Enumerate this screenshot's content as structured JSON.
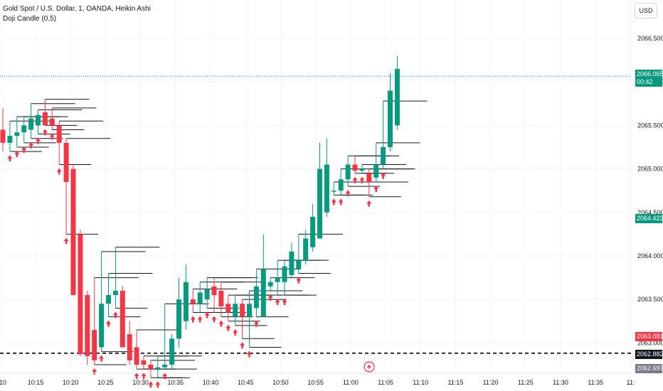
{
  "header": {
    "title": "Gold Spot / U.S. Dollar, 1, OANDA, Heikin Ashi",
    "indicator": "Doji Candle (0.5)"
  },
  "currency_button": "USD",
  "badges": {
    "last_price": "2066.065",
    "countdown": "00:42",
    "marker_green": "2064.423",
    "marker_red": "2063.081",
    "line_black": "2062.882",
    "line_gray": "2062.697"
  },
  "colors": {
    "up": "#089981",
    "down": "#f23645",
    "signal_arrow": "#f23645",
    "grid": "#f0f3fa",
    "price_line": "#089981"
  },
  "chart_data": {
    "type": "candlestick",
    "title": "Gold Spot / U.S. Dollar, 1, OANDA, Heikin Ashi",
    "ylim": [
      2062.6,
      2066.85
    ],
    "y_ticks": [
      "2066.500",
      "2066.000",
      "2065.500",
      "2065.000",
      "2064.500",
      "2064.000",
      "2063.500",
      "2063.000"
    ],
    "x_ticks": [
      "10",
      "10:15",
      "10:20",
      "10:25",
      "10:30",
      "10:35",
      "10:40",
      "10:45",
      "10:50",
      "10:55",
      "11:00",
      "11:05",
      "11:10",
      "11:15",
      "11:20",
      "11:25",
      "11:30",
      "11:35",
      "11:"
    ],
    "horizontal_lines": [
      {
        "price": 2066.065,
        "style": "dotted",
        "color": "#089981"
      },
      {
        "price": 2062.882,
        "style": "dashed",
        "color": "#000000"
      }
    ],
    "candles": [
      {
        "o": 2065.45,
        "h": 2065.7,
        "l": 2065.2,
        "c": 2065.3
      },
      {
        "o": 2065.3,
        "h": 2065.55,
        "l": 2065.2,
        "c": 2065.38
      },
      {
        "o": 2065.38,
        "h": 2065.6,
        "l": 2065.25,
        "c": 2065.42
      },
      {
        "o": 2065.42,
        "h": 2065.6,
        "l": 2065.3,
        "c": 2065.5
      },
      {
        "o": 2065.45,
        "h": 2065.75,
        "l": 2065.35,
        "c": 2065.58
      },
      {
        "o": 2065.5,
        "h": 2065.68,
        "l": 2065.4,
        "c": 2065.62
      },
      {
        "o": 2065.65,
        "h": 2065.8,
        "l": 2065.5,
        "c": 2065.5
      },
      {
        "o": 2065.58,
        "h": 2065.7,
        "l": 2065.45,
        "c": 2065.5
      },
      {
        "o": 2065.5,
        "h": 2065.55,
        "l": 2065.05,
        "c": 2065.3
      },
      {
        "o": 2065.3,
        "h": 2065.35,
        "l": 2064.25,
        "c": 2064.85
      },
      {
        "o": 2065.0,
        "h": 2065.05,
        "l": 2063.55,
        "c": 2063.55
      },
      {
        "o": 2064.25,
        "h": 2064.3,
        "l": 2062.85,
        "c": 2062.87
      },
      {
        "o": 2063.55,
        "h": 2063.6,
        "l": 2062.75,
        "c": 2062.85
      },
      {
        "o": 2063.15,
        "h": 2063.75,
        "l": 2062.75,
        "c": 2062.8
      },
      {
        "o": 2062.95,
        "h": 2064.05,
        "l": 2062.9,
        "c": 2063.45
      },
      {
        "o": 2063.45,
        "h": 2063.8,
        "l": 2063.3,
        "c": 2063.55
      },
      {
        "o": 2063.55,
        "h": 2064.1,
        "l": 2063.4,
        "c": 2063.6
      },
      {
        "o": 2063.6,
        "h": 2063.65,
        "l": 2062.95,
        "c": 2062.95
      },
      {
        "o": 2063.1,
        "h": 2063.25,
        "l": 2062.75,
        "c": 2062.8
      },
      {
        "o": 2062.95,
        "h": 2063.15,
        "l": 2062.7,
        "c": 2062.75
      },
      {
        "o": 2062.8,
        "h": 2062.85,
        "l": 2062.7,
        "c": 2062.75
      },
      {
        "o": 2062.75,
        "h": 2062.8,
        "l": 2062.6,
        "c": 2062.7
      },
      {
        "o": 2062.7,
        "h": 2062.85,
        "l": 2062.6,
        "c": 2062.72
      },
      {
        "o": 2062.72,
        "h": 2063.45,
        "l": 2062.7,
        "c": 2062.75
      },
      {
        "o": 2062.75,
        "h": 2063.1,
        "l": 2062.7,
        "c": 2063.05
      },
      {
        "o": 2063.05,
        "h": 2063.75,
        "l": 2062.95,
        "c": 2063.5
      },
      {
        "o": 2063.25,
        "h": 2063.9,
        "l": 2063.15,
        "c": 2063.7
      },
      {
        "o": 2063.5,
        "h": 2063.62,
        "l": 2063.35,
        "c": 2063.45
      },
      {
        "o": 2063.45,
        "h": 2063.7,
        "l": 2063.35,
        "c": 2063.58
      },
      {
        "o": 2063.5,
        "h": 2063.75,
        "l": 2063.4,
        "c": 2063.62
      },
      {
        "o": 2063.65,
        "h": 2063.75,
        "l": 2063.35,
        "c": 2063.55
      },
      {
        "o": 2063.6,
        "h": 2063.7,
        "l": 2063.3,
        "c": 2063.42
      },
      {
        "o": 2063.45,
        "h": 2063.55,
        "l": 2063.25,
        "c": 2063.35
      },
      {
        "o": 2063.3,
        "h": 2063.55,
        "l": 2063.2,
        "c": 2063.45
      },
      {
        "o": 2063.45,
        "h": 2063.5,
        "l": 2063.05,
        "c": 2063.3
      },
      {
        "o": 2063.3,
        "h": 2063.6,
        "l": 2062.95,
        "c": 2063.45
      },
      {
        "o": 2063.4,
        "h": 2063.85,
        "l": 2063.3,
        "c": 2063.65
      },
      {
        "o": 2063.3,
        "h": 2064.25,
        "l": 2063.3,
        "c": 2063.85
      },
      {
        "o": 2063.65,
        "h": 2063.75,
        "l": 2063.6,
        "c": 2063.7
      },
      {
        "o": 2063.7,
        "h": 2063.95,
        "l": 2063.55,
        "c": 2063.75
      },
      {
        "o": 2063.7,
        "h": 2063.95,
        "l": 2063.55,
        "c": 2063.88
      },
      {
        "o": 2063.78,
        "h": 2064.15,
        "l": 2063.75,
        "c": 2064.05
      },
      {
        "o": 2063.85,
        "h": 2064.25,
        "l": 2063.8,
        "c": 2063.95
      },
      {
        "o": 2063.95,
        "h": 2064.3,
        "l": 2063.9,
        "c": 2064.2
      },
      {
        "o": 2064.1,
        "h": 2064.6,
        "l": 2064.05,
        "c": 2064.45
      },
      {
        "o": 2064.2,
        "h": 2065.3,
        "l": 2064.2,
        "c": 2065.0
      },
      {
        "o": 2064.5,
        "h": 2065.35,
        "l": 2064.45,
        "c": 2065.05
      },
      {
        "o": 2064.75,
        "h": 2064.85,
        "l": 2064.7,
        "c": 2064.75
      },
      {
        "o": 2064.75,
        "h": 2065.0,
        "l": 2064.7,
        "c": 2064.88
      },
      {
        "o": 2064.88,
        "h": 2065.15,
        "l": 2064.8,
        "c": 2065.05
      },
      {
        "o": 2065.05,
        "h": 2065.15,
        "l": 2064.95,
        "c": 2064.98
      },
      {
        "o": 2064.98,
        "h": 2065.05,
        "l": 2064.95,
        "c": 2065.0
      },
      {
        "o": 2064.95,
        "h": 2065.0,
        "l": 2064.68,
        "c": 2064.85
      },
      {
        "o": 2064.9,
        "h": 2065.3,
        "l": 2064.85,
        "c": 2065.05
      },
      {
        "o": 2065.05,
        "h": 2065.78,
        "l": 2065.0,
        "c": 2065.25
      },
      {
        "o": 2065.25,
        "h": 2066.1,
        "l": 2065.2,
        "c": 2065.9
      },
      {
        "o": 2065.5,
        "h": 2066.3,
        "l": 2065.45,
        "c": 2066.15
      }
    ]
  }
}
